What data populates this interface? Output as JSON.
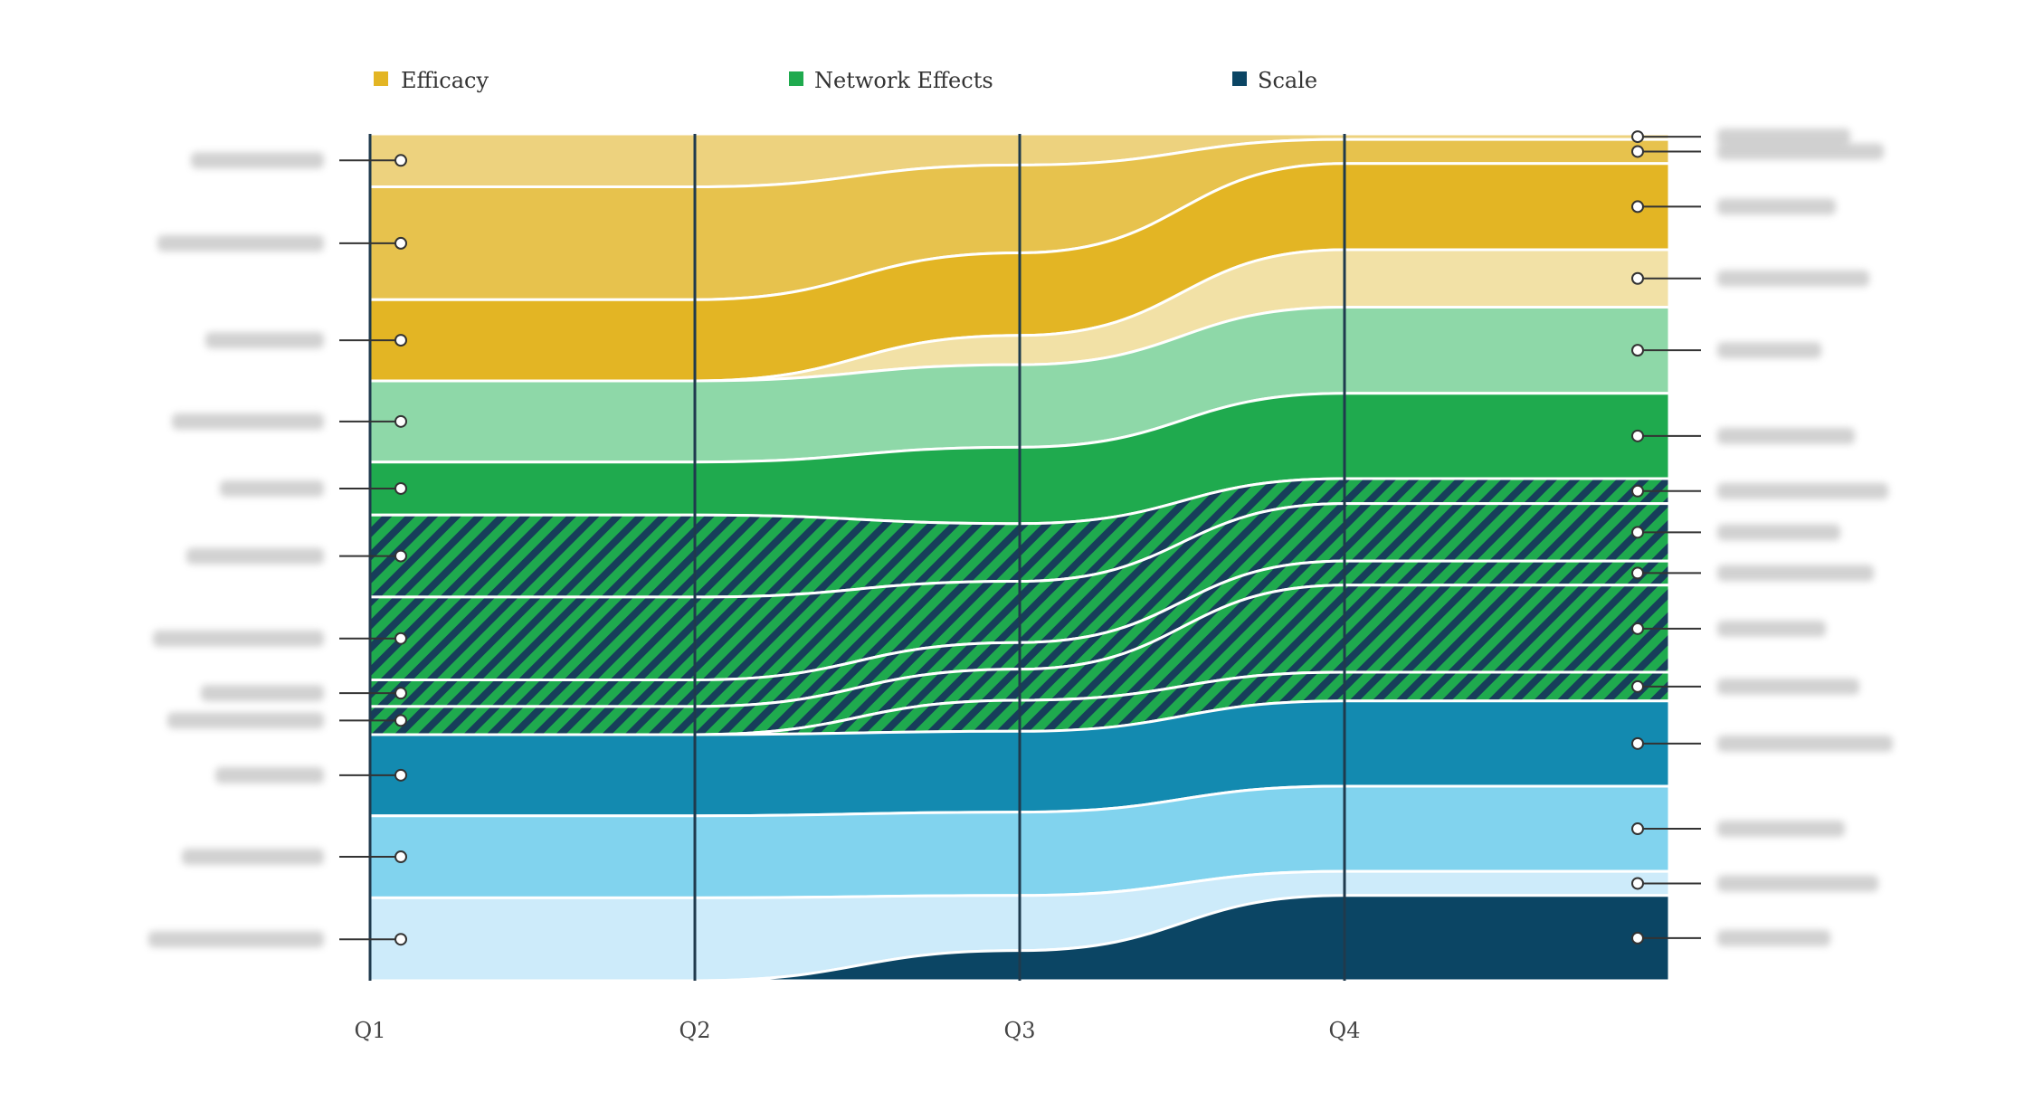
{
  "chart_data": {
    "type": "area",
    "subtype": "stacked ranked flow (bump area)",
    "title": "",
    "xlabel": "",
    "ylabel": "",
    "x": [
      "Q1",
      "Q2",
      "Q3",
      "Q4"
    ],
    "legend": [
      {
        "name": "Efficacy",
        "color": "#E3B524"
      },
      {
        "name": "Network Effects",
        "color": "#1FAA4E"
      },
      {
        "name": "Scale",
        "color": "#0B4564"
      }
    ],
    "legend_position": "top",
    "grid": "vertical lines at each quarter",
    "axis_line_color": "#1f3a4d",
    "note": "Category labels on both sides are blurred/illegible in the source.",
    "series": [
      {
        "group": "Efficacy",
        "color": "#EDD27E",
        "values": [
          6.2,
          6.2,
          3.5,
          0.6
        ],
        "hatched": false
      },
      {
        "group": "Efficacy",
        "color": "#E7C24D",
        "values": [
          13.2,
          13.2,
          9.9,
          2.6
        ],
        "hatched": false
      },
      {
        "group": "Efficacy",
        "color": "#E3B524",
        "values": [
          9.5,
          9.5,
          9.3,
          9.3
        ],
        "hatched": false
      },
      {
        "group": "Efficacy",
        "color": "#F2E1A6",
        "values": [
          0,
          0,
          3.3,
          6.2
        ],
        "hatched": false
      },
      {
        "group": "Network Effects",
        "color": "#8ED8A8",
        "values": [
          9.5,
          9.5,
          9.3,
          9.3
        ],
        "hatched": false
      },
      {
        "group": "Network Effects",
        "color": "#1FAA4E",
        "values": [
          6.2,
          6.2,
          8.6,
          9.2
        ],
        "hatched": false
      },
      {
        "group": "Network Effects",
        "color": "#1FAA4E",
        "values": [
          9.6,
          9.6,
          6.5,
          2.7
        ],
        "hatched": true
      },
      {
        "group": "Network Effects",
        "color": "#1FAA4E",
        "values": [
          9.7,
          9.7,
          6.9,
          6.2
        ],
        "hatched": true
      },
      {
        "group": "Network Effects",
        "color": "#1FAA4E",
        "values": [
          3.1,
          3.1,
          3.0,
          2.6
        ],
        "hatched": true
      },
      {
        "group": "Network Effects",
        "color": "#1FAA4E",
        "values": [
          3.3,
          3.3,
          3.5,
          9.4
        ],
        "hatched": true
      },
      {
        "group": "Network Effects",
        "color": "#1FAA4E",
        "values": [
          0,
          0,
          3.5,
          3.1
        ],
        "hatched": true
      },
      {
        "group": "Scale",
        "color": "#138AB0",
        "values": [
          9.5,
          9.5,
          9.1,
          9.2
        ],
        "hatched": false
      },
      {
        "group": "Scale",
        "color": "#81D3EE",
        "values": [
          9.6,
          9.6,
          9.4,
          9.2
        ],
        "hatched": false
      },
      {
        "group": "Scale",
        "color": "#CDEBFA",
        "values": [
          9.7,
          9.7,
          6.2,
          2.6
        ],
        "hatched": false
      },
      {
        "group": "Scale",
        "color": "#0B4564",
        "values": [
          0,
          0,
          3.4,
          9.2
        ],
        "hatched": false
      }
    ],
    "ylim": [
      0,
      100
    ]
  }
}
